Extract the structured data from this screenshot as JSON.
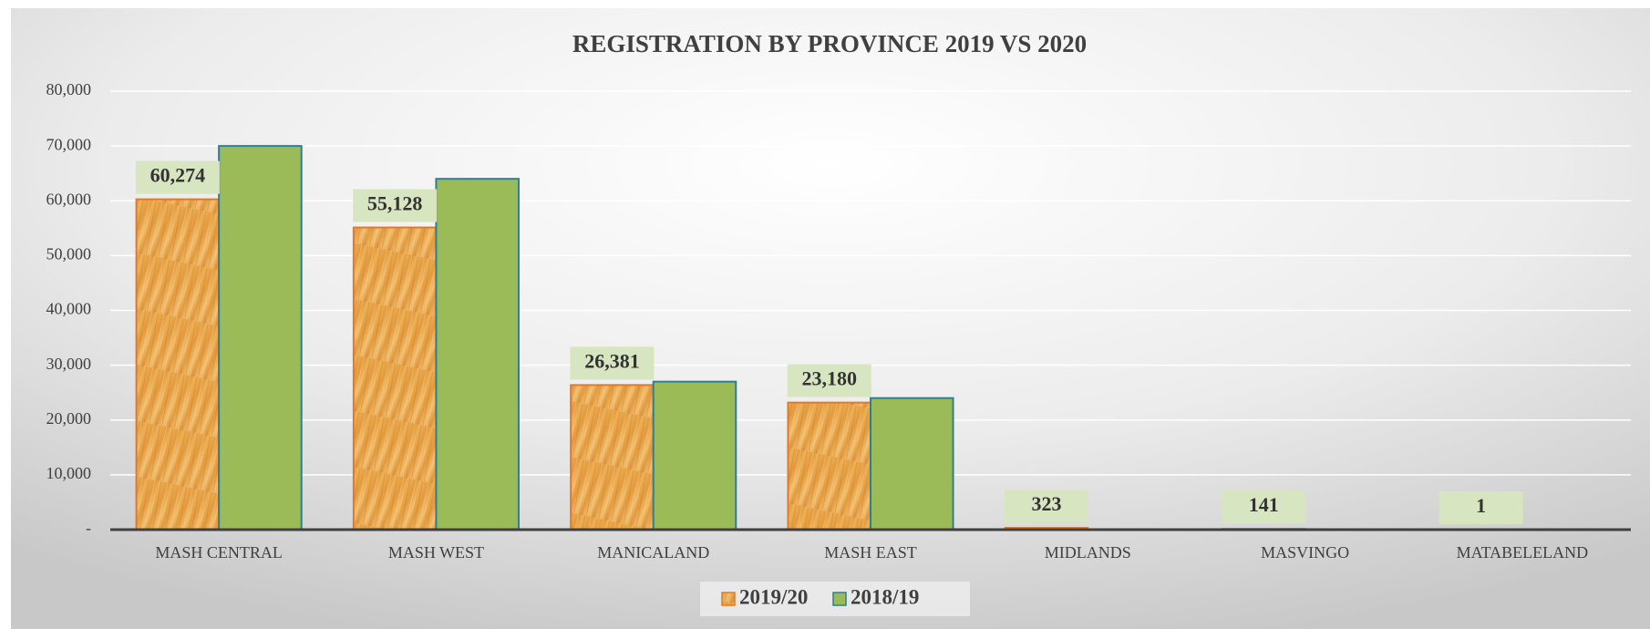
{
  "chart_data": {
    "type": "bar",
    "title": "REGISTRATION BY PROVINCE 2019 VS  2020",
    "categories": [
      "MASH CENTRAL",
      "MASH WEST",
      "MANICALAND",
      "MASH EAST",
      "MIDLANDS",
      "MASVINGO",
      "MATABELELAND"
    ],
    "series": [
      {
        "name": "2019/20",
        "color": "#e8a040",
        "values": [
          60274,
          55128,
          26381,
          23180,
          323,
          141,
          1
        ],
        "value_labels": [
          "60,274",
          "55,128",
          "26,381",
          "23,180",
          "323",
          "141",
          "1"
        ]
      },
      {
        "name": "2018/19",
        "color": "#9bbb59",
        "values": [
          70000,
          64000,
          27000,
          24000,
          0,
          0,
          0
        ]
      }
    ],
    "ylim": [
      0,
      80000
    ],
    "yticks": [
      {
        "value": 0,
        "label": "-"
      },
      {
        "value": 10000,
        "label": "10,000"
      },
      {
        "value": 20000,
        "label": "20,000"
      },
      {
        "value": 30000,
        "label": "30,000"
      },
      {
        "value": 40000,
        "label": "40,000"
      },
      {
        "value": 50000,
        "label": "50,000"
      },
      {
        "value": 60000,
        "label": "60,000"
      },
      {
        "value": 70000,
        "label": "70,000"
      },
      {
        "value": 80000,
        "label": "80,000"
      }
    ],
    "grid": true,
    "legend": "bottom"
  }
}
